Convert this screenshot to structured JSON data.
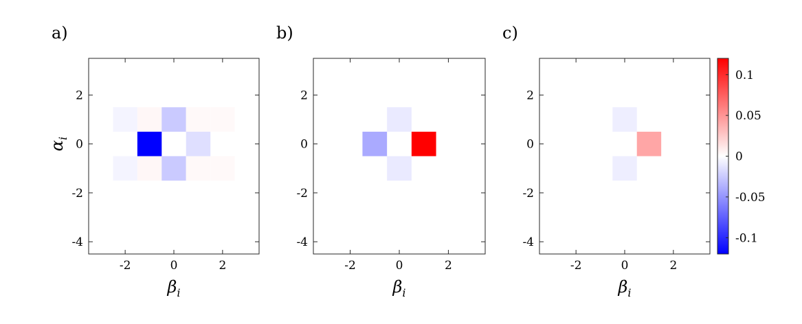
{
  "chart_data": [
    {
      "type": "heatmap",
      "panel_label": "a)",
      "xlabel": {
        "symbol": "β",
        "sub": "i"
      },
      "ylabel": {
        "symbol": "α",
        "sub": "i"
      },
      "xlim": [
        -3.5,
        3.5
      ],
      "ylim": [
        -4.5,
        3.5
      ],
      "xticks": [
        -2,
        0,
        2
      ],
      "yticks": [
        -4,
        -2,
        0,
        2
      ],
      "xtick_labels": [
        "-2",
        "0",
        "2"
      ],
      "ytick_labels": [
        "-4",
        "-2",
        "0",
        "2"
      ],
      "cells": [
        {
          "beta": -2,
          "alpha": 1,
          "value": -0.005
        },
        {
          "beta": -1,
          "alpha": 1,
          "value": 0.004
        },
        {
          "beta": 0,
          "alpha": 1,
          "value": -0.025
        },
        {
          "beta": 1,
          "alpha": 1,
          "value": 0.003
        },
        {
          "beta": 2,
          "alpha": 1,
          "value": 0.003
        },
        {
          "beta": -1,
          "alpha": 0,
          "value": -0.12
        },
        {
          "beta": 1,
          "alpha": 0,
          "value": -0.015
        },
        {
          "beta": -2,
          "alpha": -1,
          "value": -0.005
        },
        {
          "beta": -1,
          "alpha": -1,
          "value": 0.004
        },
        {
          "beta": 0,
          "alpha": -1,
          "value": -0.025
        },
        {
          "beta": 1,
          "alpha": -1,
          "value": 0.003
        },
        {
          "beta": 2,
          "alpha": -1,
          "value": 0.003
        }
      ]
    },
    {
      "type": "heatmap",
      "panel_label": "b)",
      "xlabel": {
        "symbol": "β",
        "sub": "i"
      },
      "ylabel": null,
      "xlim": [
        -3.5,
        3.5
      ],
      "ylim": [
        -4.5,
        3.5
      ],
      "xticks": [
        -2,
        0,
        2
      ],
      "yticks": [
        -4,
        -2,
        0,
        2
      ],
      "xtick_labels": [
        "-2",
        "0",
        "2"
      ],
      "ytick_labels": [
        "-4",
        "-2",
        "0",
        "2"
      ],
      "cells": [
        {
          "beta": 0,
          "alpha": 1,
          "value": -0.01
        },
        {
          "beta": -1,
          "alpha": 0,
          "value": -0.04
        },
        {
          "beta": 1,
          "alpha": 0,
          "value": 0.12
        },
        {
          "beta": 0,
          "alpha": -1,
          "value": -0.01
        }
      ]
    },
    {
      "type": "heatmap",
      "panel_label": "c)",
      "xlabel": {
        "symbol": "β",
        "sub": "i"
      },
      "ylabel": null,
      "xlim": [
        -3.5,
        3.5
      ],
      "ylim": [
        -4.5,
        3.5
      ],
      "xticks": [
        -2,
        0,
        2
      ],
      "yticks": [
        -4,
        -2,
        0,
        2
      ],
      "xtick_labels": [
        "-2",
        "0",
        "2"
      ],
      "ytick_labels": [
        "-4",
        "-2",
        "0",
        "2"
      ],
      "cells": [
        {
          "beta": 0,
          "alpha": 1,
          "value": -0.008
        },
        {
          "beta": 1,
          "alpha": 0,
          "value": 0.042
        },
        {
          "beta": 0,
          "alpha": -1,
          "value": -0.008
        }
      ]
    }
  ],
  "colorbar": {
    "min": -0.12,
    "max": 0.12,
    "ticks": [
      -0.1,
      -0.05,
      0,
      0.05,
      0.1
    ],
    "tick_labels": [
      "-0.1",
      "-0.05",
      "0",
      "0.05",
      "0.1"
    ],
    "colormap": {
      "low": "#0000ff",
      "mid": "#ffffff",
      "high": "#ff0000"
    }
  }
}
